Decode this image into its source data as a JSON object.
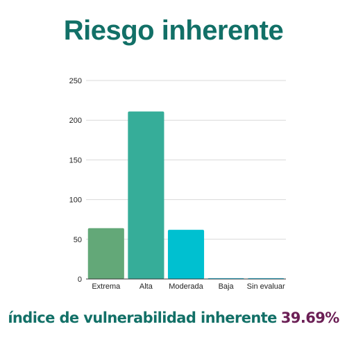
{
  "title": "Riesgo inherente",
  "colors": {
    "title": "#127067",
    "footer_text": "#127067",
    "footer_value": "#6b1f55",
    "grid": "#d9d9d9",
    "axis": "#333333"
  },
  "footer": {
    "label": "índice de vulnerabilidad inherente",
    "value": "39.69%"
  },
  "chart_data": {
    "type": "bar",
    "title": "",
    "xlabel": "",
    "ylabel": "",
    "categories": [
      "Extrema",
      "Alta",
      "Moderada",
      "Baja",
      "Sin evaluar"
    ],
    "values": [
      64,
      211,
      62,
      1,
      1
    ],
    "bar_colors": [
      "#63a878",
      "#36ad99",
      "#00c0d0",
      "#00bde8",
      "#00bde8"
    ],
    "ylim": [
      0,
      250
    ],
    "yticks": [
      0,
      50,
      100,
      150,
      200,
      250
    ],
    "grid": true,
    "legend": "none"
  }
}
